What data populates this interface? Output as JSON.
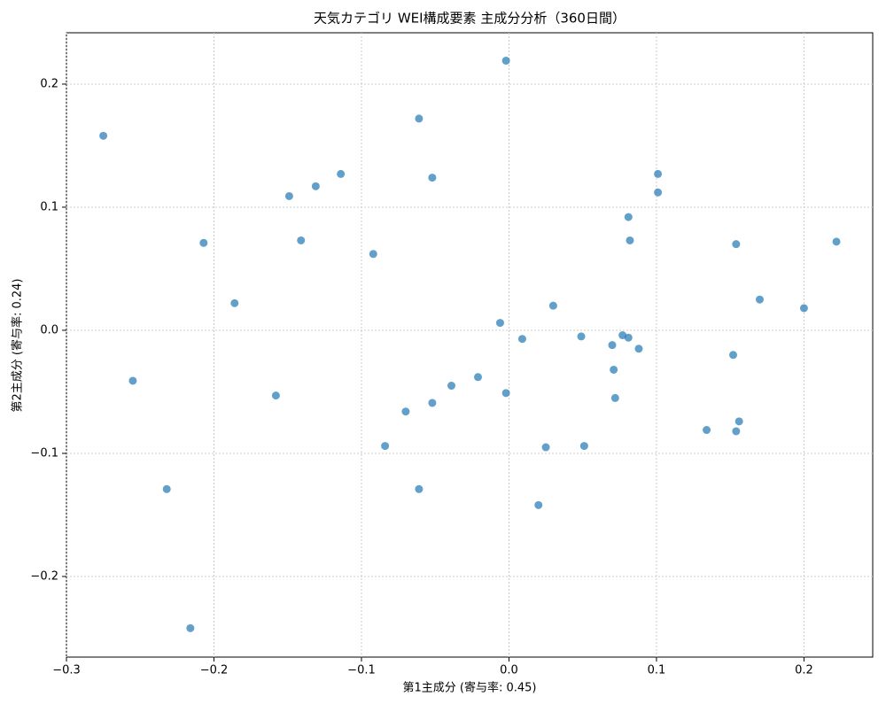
{
  "chart_data": {
    "type": "scatter",
    "title": "天気カテゴリ WEI構成要素 主成分分析（360日間）",
    "x_label": "第1主成分 (寄与率: 0.45)",
    "y_label": "第2主成分 (寄与率: 0.24)",
    "color": "#1f77b4",
    "grid": true,
    "xlim": [
      -0.3,
      0.2466
    ],
    "ylim": [
      -0.2655,
      0.2417
    ],
    "xticks": [
      {
        "value": -0.3,
        "label": "−0.3"
      },
      {
        "value": -0.2,
        "label": "−0.2"
      },
      {
        "value": -0.1,
        "label": "−0.1"
      },
      {
        "value": 0,
        "label": "0.0"
      },
      0.1,
      0.2
    ],
    "yticks": [
      {
        "value": -0.2,
        "label": "−0.2"
      },
      {
        "value": -0.1,
        "label": "−0.1"
      },
      {
        "value": 0,
        "label": "0.0"
      },
      0.1,
      0.2
    ],
    "x": [
      -0.275,
      -0.002,
      -0.061,
      -0.149,
      -0.131,
      -0.114,
      -0.052,
      -0.207,
      -0.141,
      -0.092,
      -0.186,
      -0.255,
      -0.158,
      -0.232,
      -0.216,
      -0.061,
      -0.084,
      -0.07,
      -0.052,
      -0.039,
      -0.021,
      -0.002,
      -0.006,
      0.009,
      0.03,
      0.02,
      0.025,
      0.049,
      0.051,
      0.07,
      0.071,
      0.072,
      0.077,
      0.081,
      0.088,
      0.081,
      0.082,
      0.101,
      0.101,
      0.134,
      0.152,
      0.154,
      0.156,
      0.154,
      0.17,
      0.2,
      0.222
    ],
    "values": [
      0.158,
      0.219,
      0.172,
      0.109,
      0.117,
      0.127,
      0.124,
      0.071,
      0.073,
      0.062,
      0.022,
      -0.041,
      -0.053,
      -0.129,
      -0.242,
      -0.129,
      -0.094,
      -0.066,
      -0.059,
      -0.045,
      -0.038,
      -0.051,
      0.006,
      -0.007,
      0.02,
      -0.142,
      -0.095,
      -0.005,
      -0.094,
      -0.012,
      -0.032,
      -0.055,
      -0.004,
      -0.006,
      -0.015,
      0.092,
      0.073,
      0.127,
      0.112,
      -0.081,
      -0.02,
      -0.082,
      -0.074,
      0.07,
      0.025,
      0.018,
      0.072
    ]
  }
}
